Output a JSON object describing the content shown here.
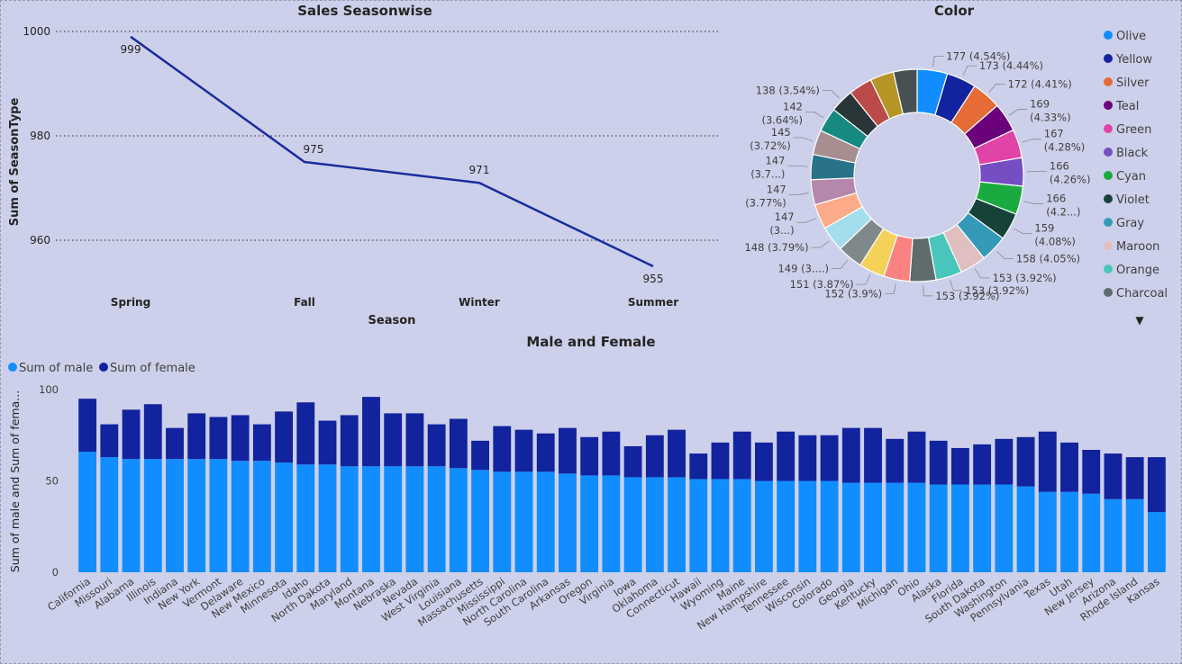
{
  "charts": {
    "season": {
      "title": "Sales Seasonwise",
      "xlabel": "Season",
      "ylabel": "Sum of SeasonType",
      "yticks": [
        "1000",
        "980",
        "960"
      ],
      "line_color": "#1a2c9e"
    },
    "color": {
      "title": "Color",
      "legend_indicator": "▼"
    },
    "gender": {
      "title": "Male and Female",
      "ylabel": "Sum of male and Sum of fema...",
      "yticks": [
        "100",
        "50",
        "0"
      ]
    }
  },
  "chart_data": [
    {
      "type": "line",
      "title": "Sales Seasonwise",
      "xlabel": "Season",
      "ylabel": "Sum of SeasonType",
      "categories": [
        "Spring",
        "Fall",
        "Winter",
        "Summer"
      ],
      "values": [
        999,
        975,
        971,
        955
      ],
      "data_labels": [
        "999",
        "975",
        "971",
        "955"
      ],
      "ylim": [
        950,
        1000
      ],
      "grid": true
    },
    {
      "type": "pie",
      "donut": true,
      "title": "Color",
      "legend_position": "right",
      "slices": [
        {
          "name": "Olive",
          "value": 177,
          "label": "177 (4.54%)",
          "color": "#118dff"
        },
        {
          "name": "Yellow",
          "value": 173,
          "label": "173 (4.44%)",
          "color": "#12239e"
        },
        {
          "name": "Silver",
          "value": 172,
          "label": "172 (4.41%)",
          "color": "#e66c37"
        },
        {
          "name": "Teal",
          "value": 169,
          "label": "169 (4.33%)",
          "color": "#6b007b"
        },
        {
          "name": "Green",
          "value": 167,
          "label": "167 (4.28%)",
          "color": "#e044a7"
        },
        {
          "name": "Black",
          "value": 166,
          "label": "166 (4.26%)",
          "color": "#744ec2"
        },
        {
          "name": "Cyan",
          "value": 166,
          "label": "166 (4.2...)",
          "color": "#1aab40"
        },
        {
          "name": "Violet",
          "value": 159,
          "label": "159 (4.08%)",
          "color": "#15433a"
        },
        {
          "name": "Gray",
          "value": 158,
          "label": "158 (4.05%)",
          "color": "#3599b8"
        },
        {
          "name": "Maroon",
          "value": 153,
          "label": "153 (3.92%)",
          "color": "#dfbfbf"
        },
        {
          "name": "Orange",
          "value": 153,
          "label": "153 (3.92%)",
          "color": "#4ac5bb"
        },
        {
          "name": "Charcoal",
          "value": 153,
          "label": "153 (3.92%)",
          "color": "#5f6b6d"
        },
        {
          "value": 152,
          "label": "152 (3.9%)",
          "color": "#fb8281"
        },
        {
          "value": 151,
          "label": "151 (3.87%)",
          "color": "#f4d25a"
        },
        {
          "value": 149,
          "label": "149 (3....)",
          "color": "#7f898a"
        },
        {
          "value": 148,
          "label": "148 (3.79%)",
          "color": "#a4ddee"
        },
        {
          "value": 147,
          "label": "147 (3...)",
          "color": "#fdab89"
        },
        {
          "value": 147,
          "label": "147 (3.77%)",
          "color": "#b687ac"
        },
        {
          "value": 147,
          "label": "147 (3.7...)",
          "color": "#28738a"
        },
        {
          "value": 145,
          "label": "145 (3.72%)",
          "color": "#a78f8f"
        },
        {
          "value": 142,
          "label": "142 (3.64%)",
          "color": "#168980"
        },
        {
          "value": 138,
          "label": "138 (3.54%)",
          "color": "#293537"
        },
        {
          "value": 138,
          "label": "",
          "color": "#bb4a4a"
        },
        {
          "value": 138,
          "label": "",
          "color": "#b59525"
        },
        {
          "value": 138,
          "label": "",
          "color": "#475052"
        }
      ]
    },
    {
      "type": "bar",
      "stacked": true,
      "title": "Male and Female",
      "ylabel": "Sum of male and Sum of fema...",
      "ylim": [
        0,
        100
      ],
      "grid": false,
      "legend_position": "top-left",
      "categories": [
        "California",
        "Missouri",
        "Alabama",
        "Illinois",
        "Indiana",
        "New York",
        "Vermont",
        "Delaware",
        "New Mexico",
        "Minnesota",
        "Idaho",
        "North Dakota",
        "Maryland",
        "Montana",
        "Nebraska",
        "Nevada",
        "West Virginia",
        "Louisiana",
        "Massachusetts",
        "Mississippi",
        "North Carolina",
        "South Carolina",
        "Arkansas",
        "Oregon",
        "Virginia",
        "Iowa",
        "Oklahoma",
        "Connecticut",
        "Hawaii",
        "Wyoming",
        "Maine",
        "New Hampshire",
        "Tennessee",
        "Wisconsin",
        "Colorado",
        "Georgia",
        "Kentucky",
        "Michigan",
        "Ohio",
        "Alaska",
        "Florida",
        "South Dakota",
        "Washington",
        "Pennsylvania",
        "Texas",
        "Utah",
        "New Jersey",
        "Arizona",
        "Rhode Island",
        "Kansas"
      ],
      "series": [
        {
          "name": "Sum of male",
          "color": "#118dff",
          "values": [
            66,
            63,
            62,
            62,
            62,
            62,
            62,
            61,
            61,
            60,
            59,
            59,
            58,
            58,
            58,
            58,
            58,
            57,
            56,
            55,
            55,
            55,
            54,
            53,
            53,
            52,
            52,
            52,
            51,
            51,
            51,
            50,
            50,
            50,
            50,
            49,
            49,
            49,
            49,
            48,
            48,
            48,
            48,
            47,
            44,
            44,
            43,
            40,
            40,
            33
          ]
        },
        {
          "name": "Sum of female",
          "color": "#12239e",
          "values": [
            29,
            18,
            27,
            30,
            17,
            25,
            23,
            25,
            20,
            28,
            34,
            24,
            28,
            38,
            29,
            29,
            23,
            27,
            16,
            25,
            23,
            21,
            25,
            21,
            24,
            17,
            23,
            26,
            14,
            20,
            26,
            21,
            27,
            25,
            25,
            30,
            30,
            24,
            28,
            24,
            20,
            22,
            25,
            27,
            33,
            27,
            24,
            25,
            23,
            30
          ]
        }
      ]
    }
  ]
}
